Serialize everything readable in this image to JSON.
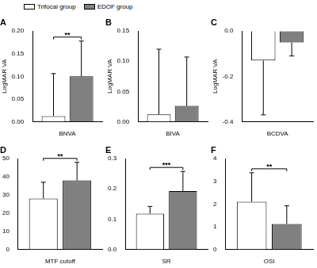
{
  "chart_data": [
    {
      "type": "bar",
      "title": "A",
      "y_label": "LogMAR VA",
      "categories": [
        "BNVA"
      ],
      "series": [
        {
          "name": "Trifocal group",
          "color": "#ffffff",
          "values": [
            0.012
          ],
          "error": [
            0.094
          ]
        },
        {
          "name": "EDOF group",
          "color": "#808080",
          "values": [
            0.1
          ],
          "error": [
            0.078
          ]
        }
      ],
      "ylim": [
        0,
        0.2
      ],
      "yticks": [
        {
          "value": 0,
          "label": "0.00"
        },
        {
          "value": 0.05,
          "label": "0.05"
        },
        {
          "value": 0.1,
          "label": "0.10"
        },
        {
          "value": 0.15,
          "label": "0.15"
        },
        {
          "value": 0.2,
          "label": "0.20"
        }
      ],
      "grid": false,
      "annotation": "**",
      "legend": "top left"
    },
    {
      "type": "bar",
      "title": "B",
      "y_label": "LogMAR VA",
      "categories": [
        "BIVA"
      ],
      "series": [
        {
          "name": "Trifocal group",
          "color": "#ffffff",
          "values": [
            0.012
          ],
          "error": [
            0.108
          ]
        },
        {
          "name": "EDOF group",
          "color": "#808080",
          "values": [
            0.026
          ],
          "error": [
            0.081
          ]
        }
      ],
      "ylim": [
        0,
        0.15
      ],
      "yticks": [
        {
          "value": 0,
          "label": "0.00"
        },
        {
          "value": 0.05,
          "label": "0.05"
        },
        {
          "value": 0.1,
          "label": "0.10"
        },
        {
          "value": 0.15,
          "label": "0.15"
        }
      ],
      "grid": false
    },
    {
      "type": "bar",
      "title": "C",
      "y_label": "LogMAR VA",
      "categories": [
        "BCDVA"
      ],
      "series": [
        {
          "name": "Trifocal group",
          "color": "#ffffff",
          "values": [
            -0.13
          ],
          "error": [
            0.24
          ]
        },
        {
          "name": "EDOF group",
          "color": "#808080",
          "values": [
            -0.05
          ],
          "error": [
            0.06
          ]
        }
      ],
      "ylim": [
        -0.4,
        0
      ],
      "yticks": [
        {
          "value": -0.4,
          "label": "-0.4"
        },
        {
          "value": -0.2,
          "label": "-0.2"
        },
        {
          "value": 0,
          "label": "0.0"
        }
      ],
      "grid": false
    },
    {
      "type": "bar",
      "title": "D",
      "categories": [
        "MTF cutoff"
      ],
      "series": [
        {
          "name": "Trifocal group",
          "color": "#ffffff",
          "values": [
            28
          ],
          "error": [
            9
          ]
        },
        {
          "name": "EDOF group",
          "color": "#808080",
          "values": [
            38
          ],
          "error": [
            10
          ]
        }
      ],
      "ylim": [
        0,
        50
      ],
      "yticks": [
        0,
        10,
        20,
        30,
        40,
        50
      ],
      "grid": false,
      "annotation": "**"
    },
    {
      "type": "bar",
      "title": "E",
      "categories": [
        "SR"
      ],
      "series": [
        {
          "name": "Trifocal group",
          "color": "#ffffff",
          "values": [
            0.118
          ],
          "error": [
            0.024
          ]
        },
        {
          "name": "EDOF group",
          "color": "#808080",
          "values": [
            0.193
          ],
          "error": [
            0.065
          ]
        }
      ],
      "ylim": [
        0,
        0.3
      ],
      "yticks": [
        {
          "value": 0,
          "label": "0.0"
        },
        {
          "value": 0.1,
          "label": "0.1"
        },
        {
          "value": 0.2,
          "label": "0.2"
        },
        {
          "value": 0.3,
          "label": "0.3"
        }
      ],
      "grid": false,
      "annotation": "***"
    },
    {
      "type": "bar",
      "title": "F",
      "categories": [
        "OSI"
      ],
      "series": [
        {
          "name": "Trifocal group",
          "color": "#ffffff",
          "values": [
            2.1
          ],
          "error": [
            1.28
          ]
        },
        {
          "name": "EDOF group",
          "color": "#808080",
          "values": [
            1.12
          ],
          "error": [
            0.8
          ]
        }
      ],
      "ylim": [
        0,
        4
      ],
      "yticks": [
        0,
        1,
        2,
        3,
        4
      ],
      "grid": false,
      "annotation": "**"
    }
  ]
}
